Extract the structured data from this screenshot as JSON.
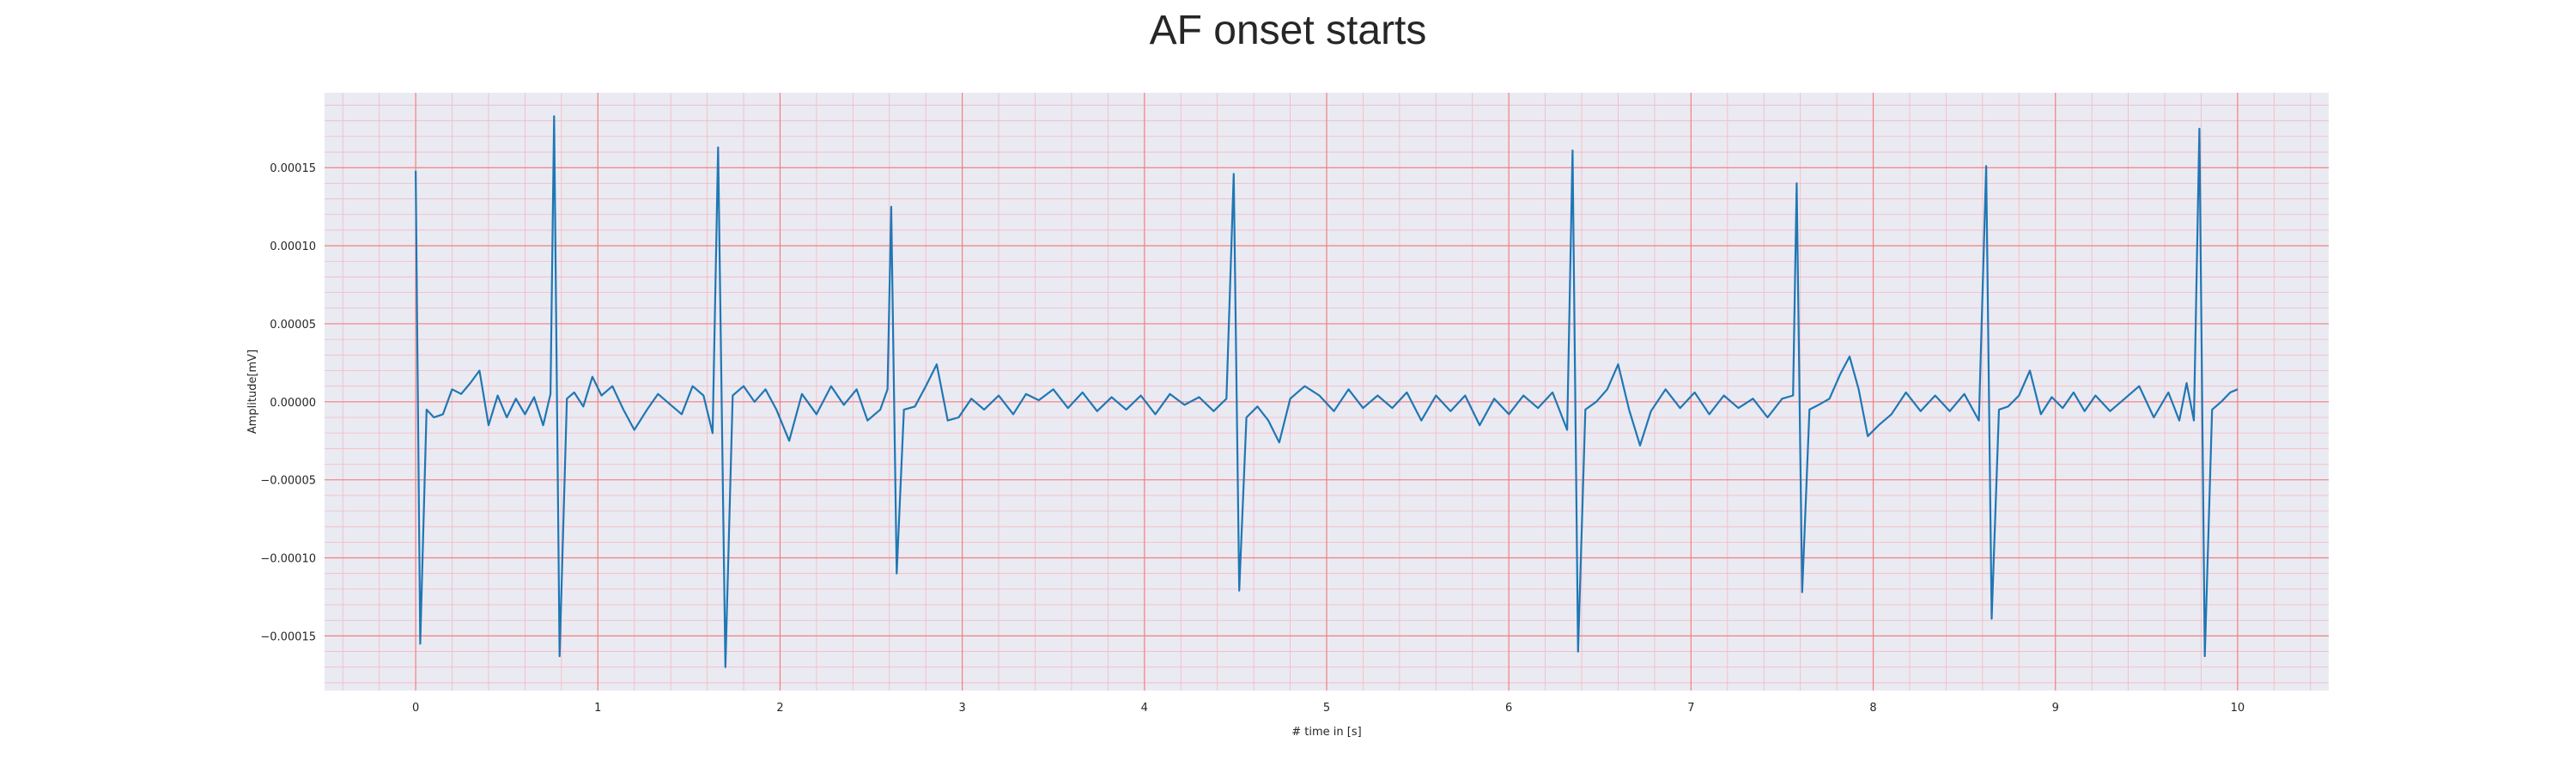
{
  "chart_data": {
    "type": "line",
    "title": "AF onset starts",
    "xlabel": "# time in [s]",
    "ylabel": "Amplitude[mV]",
    "xlim": [
      -0.5,
      10.5
    ],
    "ylim": [
      -0.000185,
      0.000198
    ],
    "x_ticks": [
      0,
      1,
      2,
      3,
      4,
      5,
      6,
      7,
      8,
      9,
      10
    ],
    "x_tick_labels": [
      "0",
      "1",
      "2",
      "3",
      "4",
      "5",
      "6",
      "7",
      "8",
      "9",
      "10"
    ],
    "y_ticks": [
      0.00015,
      0.0001,
      5e-05,
      0.0,
      -5e-05,
      -0.0001,
      -0.00015
    ],
    "y_tick_labels": [
      "0.00015",
      "0.00010",
      "0.00005",
      "0.00000",
      "−0.00005",
      "−0.00010",
      "−0.00015"
    ],
    "grid": true,
    "background_color": "#eaeaf2",
    "major_grid_color": "#f08080",
    "minor_grid_color": "#f5b8c0",
    "line_color": "#1f77b4",
    "series": [
      {
        "points": [
          [
            0.0,
            0.000148
          ],
          [
            0.025,
            -0.000155
          ],
          [
            0.06,
            -5e-06
          ],
          [
            0.1,
            -1e-05
          ],
          [
            0.15,
            -8e-06
          ],
          [
            0.2,
            8e-06
          ],
          [
            0.25,
            5e-06
          ],
          [
            0.3,
            1.2e-05
          ],
          [
            0.35,
            2e-05
          ],
          [
            0.4,
            -1.5e-05
          ],
          [
            0.45,
            4e-06
          ],
          [
            0.5,
            -1e-05
          ],
          [
            0.55,
            2e-06
          ],
          [
            0.6,
            -8e-06
          ],
          [
            0.65,
            3e-06
          ],
          [
            0.7,
            -1.5e-05
          ],
          [
            0.74,
            5e-06
          ],
          [
            0.76,
            0.000183
          ],
          [
            0.79,
            -0.000163
          ],
          [
            0.83,
            2e-06
          ],
          [
            0.87,
            6e-06
          ],
          [
            0.92,
            -3e-06
          ],
          [
            0.97,
            1.6e-05
          ],
          [
            1.02,
            4e-06
          ],
          [
            1.08,
            1e-05
          ],
          [
            1.14,
            -5e-06
          ],
          [
            1.2,
            -1.8e-05
          ],
          [
            1.27,
            -5e-06
          ],
          [
            1.33,
            5e-06
          ],
          [
            1.4,
            -2e-06
          ],
          [
            1.46,
            -8e-06
          ],
          [
            1.52,
            1e-05
          ],
          [
            1.58,
            4e-06
          ],
          [
            1.63,
            -2e-05
          ],
          [
            1.66,
            0.000163
          ],
          [
            1.7,
            -0.00017
          ],
          [
            1.74,
            4e-06
          ],
          [
            1.8,
            1e-05
          ],
          [
            1.86,
            0.0
          ],
          [
            1.92,
            8e-06
          ],
          [
            1.98,
            -5e-06
          ],
          [
            2.05,
            -2.5e-05
          ],
          [
            2.12,
            5e-06
          ],
          [
            2.2,
            -8e-06
          ],
          [
            2.28,
            1e-05
          ],
          [
            2.35,
            -2e-06
          ],
          [
            2.42,
            8e-06
          ],
          [
            2.48,
            -1.2e-05
          ],
          [
            2.55,
            -5e-06
          ],
          [
            2.59,
            8e-06
          ],
          [
            2.61,
            0.000125
          ],
          [
            2.64,
            -0.00011
          ],
          [
            2.68,
            -5e-06
          ],
          [
            2.74,
            -3e-06
          ],
          [
            2.8,
            1e-05
          ],
          [
            2.86,
            2.4e-05
          ],
          [
            2.92,
            -1.2e-05
          ],
          [
            2.98,
            -1e-05
          ],
          [
            3.05,
            2e-06
          ],
          [
            3.12,
            -5e-06
          ],
          [
            3.2,
            4e-06
          ],
          [
            3.28,
            -8e-06
          ],
          [
            3.35,
            5e-06
          ],
          [
            3.42,
            1e-06
          ],
          [
            3.5,
            8e-06
          ],
          [
            3.58,
            -4e-06
          ],
          [
            3.66,
            6e-06
          ],
          [
            3.74,
            -6e-06
          ],
          [
            3.82,
            3e-06
          ],
          [
            3.9,
            -5e-06
          ],
          [
            3.98,
            4e-06
          ],
          [
            4.06,
            -8e-06
          ],
          [
            4.14,
            5e-06
          ],
          [
            4.22,
            -2e-06
          ],
          [
            4.3,
            3e-06
          ],
          [
            4.38,
            -6e-06
          ],
          [
            4.45,
            2e-06
          ],
          [
            4.49,
            0.000146
          ],
          [
            4.52,
            -0.000121
          ],
          [
            4.56,
            -1e-05
          ],
          [
            4.62,
            -3e-06
          ],
          [
            4.68,
            -1.2e-05
          ],
          [
            4.74,
            -2.6e-05
          ],
          [
            4.8,
            2e-06
          ],
          [
            4.88,
            1e-05
          ],
          [
            4.96,
            4e-06
          ],
          [
            5.04,
            -6e-06
          ],
          [
            5.12,
            8e-06
          ],
          [
            5.2,
            -4e-06
          ],
          [
            5.28,
            4e-06
          ],
          [
            5.36,
            -4e-06
          ],
          [
            5.44,
            6e-06
          ],
          [
            5.52,
            -1.2e-05
          ],
          [
            5.6,
            4e-06
          ],
          [
            5.68,
            -6e-06
          ],
          [
            5.76,
            4e-06
          ],
          [
            5.84,
            -1.5e-05
          ],
          [
            5.92,
            2e-06
          ],
          [
            6.0,
            -8e-06
          ],
          [
            6.08,
            4e-06
          ],
          [
            6.16,
            -4e-06
          ],
          [
            6.24,
            6e-06
          ],
          [
            6.32,
            -1.8e-05
          ],
          [
            6.35,
            0.000161
          ],
          [
            6.38,
            -0.00016
          ],
          [
            6.42,
            -5e-06
          ],
          [
            6.48,
            0.0
          ],
          [
            6.54,
            8e-06
          ],
          [
            6.6,
            2.4e-05
          ],
          [
            6.66,
            -5e-06
          ],
          [
            6.72,
            -2.8e-05
          ],
          [
            6.78,
            -6e-06
          ],
          [
            6.86,
            8e-06
          ],
          [
            6.94,
            -4e-06
          ],
          [
            7.02,
            6e-06
          ],
          [
            7.1,
            -8e-06
          ],
          [
            7.18,
            4e-06
          ],
          [
            7.26,
            -4e-06
          ],
          [
            7.34,
            2e-06
          ],
          [
            7.42,
            -1e-05
          ],
          [
            7.5,
            2e-06
          ],
          [
            7.56,
            4e-06
          ],
          [
            7.58,
            0.00014
          ],
          [
            7.61,
            -0.000122
          ],
          [
            7.65,
            -5e-06
          ],
          [
            7.7,
            -2e-06
          ],
          [
            7.76,
            2e-06
          ],
          [
            7.82,
            1.8e-05
          ],
          [
            7.87,
            2.9e-05
          ],
          [
            7.92,
            8e-06
          ],
          [
            7.97,
            -2.2e-05
          ],
          [
            8.03,
            -1.5e-05
          ],
          [
            8.1,
            -8e-06
          ],
          [
            8.18,
            6e-06
          ],
          [
            8.26,
            -6e-06
          ],
          [
            8.34,
            4e-06
          ],
          [
            8.42,
            -6e-06
          ],
          [
            8.5,
            5e-06
          ],
          [
            8.58,
            -1.2e-05
          ],
          [
            8.62,
            0.000151
          ],
          [
            8.65,
            -0.000139
          ],
          [
            8.69,
            -5e-06
          ],
          [
            8.74,
            -3e-06
          ],
          [
            8.8,
            4e-06
          ],
          [
            8.86,
            2e-05
          ],
          [
            8.92,
            -8e-06
          ],
          [
            8.98,
            3e-06
          ],
          [
            9.04,
            -4e-06
          ],
          [
            9.1,
            6e-06
          ],
          [
            9.16,
            -6e-06
          ],
          [
            9.22,
            4e-06
          ],
          [
            9.3,
            -6e-06
          ],
          [
            9.38,
            2e-06
          ],
          [
            9.46,
            1e-05
          ],
          [
            9.54,
            -1e-05
          ],
          [
            9.62,
            6e-06
          ],
          [
            9.68,
            -1.2e-05
          ],
          [
            9.72,
            1.2e-05
          ],
          [
            9.76,
            -1.2e-05
          ],
          [
            9.79,
            0.000175
          ],
          [
            9.82,
            -0.000163
          ],
          [
            9.86,
            -5e-06
          ],
          [
            9.91,
            0.0
          ],
          [
            9.96,
            6e-06
          ],
          [
            10.0,
            8e-06
          ]
        ]
      }
    ]
  }
}
